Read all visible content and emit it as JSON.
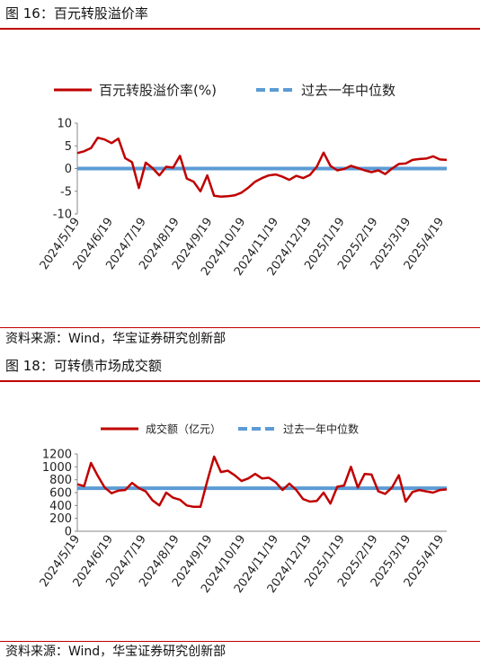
{
  "figures": [
    {
      "title": "图 16：百元转股溢价率",
      "source": "资料来源：Wind，华宝证券研究创新部"
    },
    {
      "title": "图 18：可转债市场成交额",
      "source": "资料来源：Wind，华宝证券研究创新部"
    }
  ],
  "colors": {
    "series": "#c00000",
    "median": "#5b9bd5",
    "rule": "#c00000"
  },
  "chart_data": [
    {
      "type": "line",
      "title": "",
      "ylim": [
        -10,
        10
      ],
      "yticks": [
        10,
        5,
        0,
        -5,
        -10
      ],
      "xticks": [
        "2024/5/19",
        "2024/6/19",
        "2024/7/19",
        "2024/8/19",
        "2024/9/19",
        "2024/10/19",
        "2024/11/19",
        "2024/12/19",
        "2025/1/19",
        "2025/2/19",
        "2025/3/19",
        "2025/4/19"
      ],
      "legend_position": "top",
      "series": [
        {
          "name": "百元转股溢价率(%)",
          "kind": "line",
          "values": [
            3.4,
            3.8,
            4.5,
            6.8,
            6.4,
            5.6,
            6.6,
            2.3,
            1.4,
            -4.3,
            1.3,
            0.1,
            -1.5,
            0.4,
            0.2,
            2.8,
            -2.2,
            -2.9,
            -5.0,
            -1.5,
            -6.0,
            -6.2,
            -6.1,
            -5.9,
            -5.3,
            -4.2,
            -2.9,
            -2.1,
            -1.5,
            -1.3,
            -1.8,
            -2.5,
            -1.6,
            -2.1,
            -1.4,
            0.4,
            3.5,
            0.6,
            -0.4,
            -0.1,
            0.6,
            0.1,
            -0.4,
            -0.8,
            -0.4,
            -1.2,
            0.0,
            1.0,
            1.1,
            1.9,
            2.1,
            2.2,
            2.7,
            2.0,
            1.9
          ]
        },
        {
          "name": "过去一年中位数",
          "kind": "median",
          "value": 0.0
        }
      ]
    },
    {
      "type": "line",
      "title": "",
      "ylim": [
        0,
        1200
      ],
      "yticks": [
        1200,
        1000,
        800,
        600,
        400,
        200,
        0
      ],
      "xticks": [
        "2024/5/19",
        "2024/6/19",
        "2024/7/19",
        "2024/8/19",
        "2024/9/19",
        "2024/10/19",
        "2024/11/19",
        "2024/12/19",
        "2025/1/19",
        "2025/2/19",
        "2025/3/19",
        "2025/4/19"
      ],
      "legend_position": "top",
      "series": [
        {
          "name": "成交额（亿元）",
          "kind": "line",
          "values": [
            730,
            700,
            1060,
            860,
            680,
            590,
            630,
            640,
            750,
            670,
            620,
            480,
            400,
            600,
            520,
            490,
            400,
            380,
            380,
            780,
            1160,
            920,
            940,
            870,
            780,
            820,
            890,
            820,
            830,
            760,
            640,
            740,
            640,
            500,
            460,
            470,
            600,
            430,
            690,
            710,
            1000,
            680,
            890,
            880,
            620,
            580,
            680,
            870,
            460,
            610,
            640,
            620,
            600,
            640,
            650
          ]
        },
        {
          "name": "过去一年中位数",
          "kind": "median",
          "value": 668
        }
      ]
    }
  ]
}
